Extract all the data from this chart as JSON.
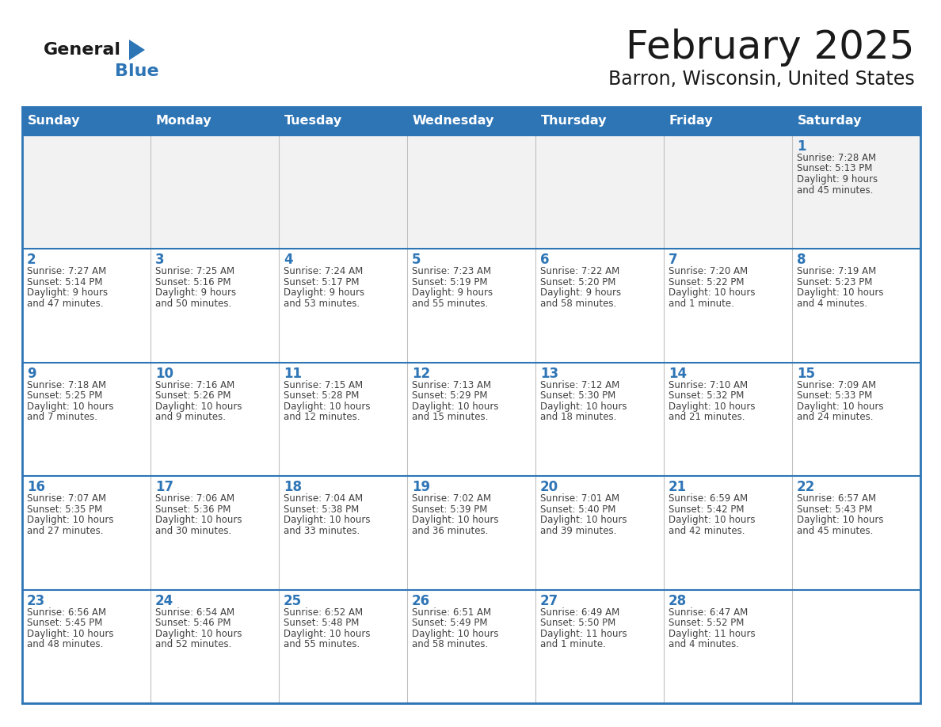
{
  "title": "February 2025",
  "subtitle": "Barron, Wisconsin, United States",
  "days_of_week": [
    "Sunday",
    "Monday",
    "Tuesday",
    "Wednesday",
    "Thursday",
    "Friday",
    "Saturday"
  ],
  "header_bg": "#2E75B6",
  "header_text": "#FFFFFF",
  "cell_bg_white": "#FFFFFF",
  "cell_bg_gray": "#F2F2F2",
  "day_number_color": "#2E75B6",
  "text_color": "#404040",
  "border_color": "#2E75B6",
  "grid_line_color": "#C0C0C0",
  "logo_general_color": "#1a1a1a",
  "logo_blue_color": "#2E75B6",
  "calendar_data": [
    [
      {
        "day": null,
        "sunrise": null,
        "sunset": null,
        "daylight": null
      },
      {
        "day": null,
        "sunrise": null,
        "sunset": null,
        "daylight": null
      },
      {
        "day": null,
        "sunrise": null,
        "sunset": null,
        "daylight": null
      },
      {
        "day": null,
        "sunrise": null,
        "sunset": null,
        "daylight": null
      },
      {
        "day": null,
        "sunrise": null,
        "sunset": null,
        "daylight": null
      },
      {
        "day": null,
        "sunrise": null,
        "sunset": null,
        "daylight": null
      },
      {
        "day": 1,
        "sunrise": "7:28 AM",
        "sunset": "5:13 PM",
        "daylight": "9 hours\nand 45 minutes."
      }
    ],
    [
      {
        "day": 2,
        "sunrise": "7:27 AM",
        "sunset": "5:14 PM",
        "daylight": "9 hours\nand 47 minutes."
      },
      {
        "day": 3,
        "sunrise": "7:25 AM",
        "sunset": "5:16 PM",
        "daylight": "9 hours\nand 50 minutes."
      },
      {
        "day": 4,
        "sunrise": "7:24 AM",
        "sunset": "5:17 PM",
        "daylight": "9 hours\nand 53 minutes."
      },
      {
        "day": 5,
        "sunrise": "7:23 AM",
        "sunset": "5:19 PM",
        "daylight": "9 hours\nand 55 minutes."
      },
      {
        "day": 6,
        "sunrise": "7:22 AM",
        "sunset": "5:20 PM",
        "daylight": "9 hours\nand 58 minutes."
      },
      {
        "day": 7,
        "sunrise": "7:20 AM",
        "sunset": "5:22 PM",
        "daylight": "10 hours\nand 1 minute."
      },
      {
        "day": 8,
        "sunrise": "7:19 AM",
        "sunset": "5:23 PM",
        "daylight": "10 hours\nand 4 minutes."
      }
    ],
    [
      {
        "day": 9,
        "sunrise": "7:18 AM",
        "sunset": "5:25 PM",
        "daylight": "10 hours\nand 7 minutes."
      },
      {
        "day": 10,
        "sunrise": "7:16 AM",
        "sunset": "5:26 PM",
        "daylight": "10 hours\nand 9 minutes."
      },
      {
        "day": 11,
        "sunrise": "7:15 AM",
        "sunset": "5:28 PM",
        "daylight": "10 hours\nand 12 minutes."
      },
      {
        "day": 12,
        "sunrise": "7:13 AM",
        "sunset": "5:29 PM",
        "daylight": "10 hours\nand 15 minutes."
      },
      {
        "day": 13,
        "sunrise": "7:12 AM",
        "sunset": "5:30 PM",
        "daylight": "10 hours\nand 18 minutes."
      },
      {
        "day": 14,
        "sunrise": "7:10 AM",
        "sunset": "5:32 PM",
        "daylight": "10 hours\nand 21 minutes."
      },
      {
        "day": 15,
        "sunrise": "7:09 AM",
        "sunset": "5:33 PM",
        "daylight": "10 hours\nand 24 minutes."
      }
    ],
    [
      {
        "day": 16,
        "sunrise": "7:07 AM",
        "sunset": "5:35 PM",
        "daylight": "10 hours\nand 27 minutes."
      },
      {
        "day": 17,
        "sunrise": "7:06 AM",
        "sunset": "5:36 PM",
        "daylight": "10 hours\nand 30 minutes."
      },
      {
        "day": 18,
        "sunrise": "7:04 AM",
        "sunset": "5:38 PM",
        "daylight": "10 hours\nand 33 minutes."
      },
      {
        "day": 19,
        "sunrise": "7:02 AM",
        "sunset": "5:39 PM",
        "daylight": "10 hours\nand 36 minutes."
      },
      {
        "day": 20,
        "sunrise": "7:01 AM",
        "sunset": "5:40 PM",
        "daylight": "10 hours\nand 39 minutes."
      },
      {
        "day": 21,
        "sunrise": "6:59 AM",
        "sunset": "5:42 PM",
        "daylight": "10 hours\nand 42 minutes."
      },
      {
        "day": 22,
        "sunrise": "6:57 AM",
        "sunset": "5:43 PM",
        "daylight": "10 hours\nand 45 minutes."
      }
    ],
    [
      {
        "day": 23,
        "sunrise": "6:56 AM",
        "sunset": "5:45 PM",
        "daylight": "10 hours\nand 48 minutes."
      },
      {
        "day": 24,
        "sunrise": "6:54 AM",
        "sunset": "5:46 PM",
        "daylight": "10 hours\nand 52 minutes."
      },
      {
        "day": 25,
        "sunrise": "6:52 AM",
        "sunset": "5:48 PM",
        "daylight": "10 hours\nand 55 minutes."
      },
      {
        "day": 26,
        "sunrise": "6:51 AM",
        "sunset": "5:49 PM",
        "daylight": "10 hours\nand 58 minutes."
      },
      {
        "day": 27,
        "sunrise": "6:49 AM",
        "sunset": "5:50 PM",
        "daylight": "11 hours\nand 1 minute."
      },
      {
        "day": 28,
        "sunrise": "6:47 AM",
        "sunset": "5:52 PM",
        "daylight": "11 hours\nand 4 minutes."
      },
      {
        "day": null,
        "sunrise": null,
        "sunset": null,
        "daylight": null
      }
    ]
  ]
}
